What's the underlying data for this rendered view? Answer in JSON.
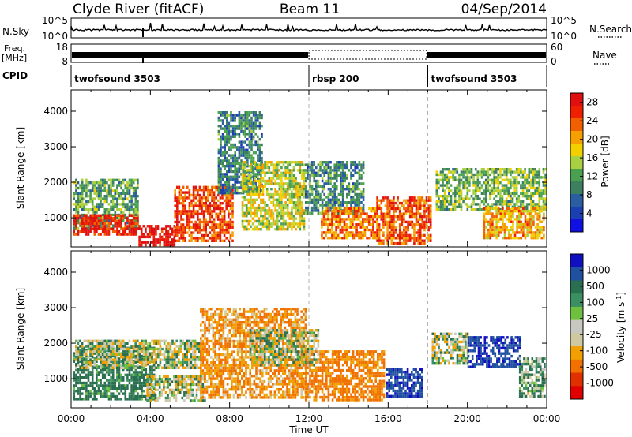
{
  "header": {
    "station": "Clyde River (fitACF)",
    "beam": "Beam 11",
    "date": "04/Sep/2014"
  },
  "noise_panel": {
    "left_label": "N.Sky",
    "left_ticks": [
      "10^5",
      "10^0"
    ],
    "right_label": "N.Search",
    "right_ticks": [
      "10^5",
      "10^0"
    ]
  },
  "freq_panel": {
    "left_label_1": "Freq.",
    "left_label_2": "[MHz]",
    "left_ticks": [
      "18",
      "8"
    ],
    "right_label": "Nave",
    "right_ticks": [
      "60",
      "0"
    ]
  },
  "cpid": {
    "label": "CPID",
    "segments": [
      {
        "name": "twofsound 3503",
        "start_hour": 0,
        "end_hour": 12
      },
      {
        "name": "rbsp 200",
        "start_hour": 12,
        "end_hour": 18
      },
      {
        "name": "twofsound 3503",
        "start_hour": 18,
        "end_hour": 24
      }
    ]
  },
  "colors": {
    "power_scale": [
      "#1010e0",
      "#1a3fb0",
      "#2a5ea0",
      "#3c8060",
      "#4aa050",
      "#a8d040",
      "#f2d000",
      "#f5a000",
      "#f06000",
      "#ee2000",
      "#e01010"
    ],
    "velocity_scale": [
      "#1010c0",
      "#2050a0",
      "#2a7050",
      "#3a9060",
      "#70c040",
      "#c8c8c0",
      "#d0c8a0",
      "#f0a000",
      "#f07000",
      "#e03000",
      "#e00000"
    ],
    "grid_dash": "#b0b0b0"
  },
  "chart_data": [
    {
      "type": "heatmap",
      "title": "Beam 11",
      "xlabel": "Time UT",
      "ylabel": "Slant Range [km]",
      "x_ticks": [
        "00:00",
        "04:00",
        "08:00",
        "12:00",
        "16:00",
        "20:00",
        "00:00"
      ],
      "xlim_hours": [
        0,
        24
      ],
      "y_ticks": [
        1000,
        2000,
        3000,
        4000
      ],
      "ylim": [
        180,
        4600
      ],
      "colorbar": {
        "label": "Power [dB]",
        "ticks": [
          4,
          8,
          12,
          16,
          20,
          24,
          28
        ],
        "range": [
          0,
          30
        ]
      },
      "echo_regions": [
        {
          "t0": 0.1,
          "t1": 3.4,
          "r0": 700,
          "r1": 2100,
          "value": 12
        },
        {
          "t0": 0.1,
          "t1": 3.4,
          "r0": 500,
          "r1": 1100,
          "value": 27
        },
        {
          "t0": 3.4,
          "t1": 5.2,
          "r0": 250,
          "r1": 800,
          "value": 29
        },
        {
          "t0": 5.2,
          "t1": 8.2,
          "r0": 350,
          "r1": 1900,
          "value": 25
        },
        {
          "t0": 7.4,
          "t1": 9.6,
          "r0": 1700,
          "r1": 4000,
          "value": 9
        },
        {
          "t0": 8.6,
          "t1": 11.8,
          "r0": 700,
          "r1": 2600,
          "value": 16
        },
        {
          "t0": 11.8,
          "t1": 14.8,
          "r0": 1100,
          "r1": 2600,
          "value": 10
        },
        {
          "t0": 12.6,
          "t1": 15.4,
          "r0": 400,
          "r1": 1300,
          "value": 22
        },
        {
          "t0": 15.4,
          "t1": 18.1,
          "r0": 300,
          "r1": 1600,
          "value": 24
        },
        {
          "t0": 18.4,
          "t1": 23.9,
          "r0": 1200,
          "r1": 2400,
          "value": 13
        },
        {
          "t0": 20.8,
          "t1": 23.9,
          "r0": 400,
          "r1": 1300,
          "value": 20
        }
      ]
    },
    {
      "type": "heatmap",
      "xlabel": "Time UT",
      "ylabel": "Slant Range [km]",
      "x_ticks": [
        "00:00",
        "04:00",
        "08:00",
        "12:00",
        "16:00",
        "20:00",
        "00:00"
      ],
      "xlim_hours": [
        0,
        24
      ],
      "y_ticks": [
        1000,
        2000,
        3000,
        4000
      ],
      "ylim": [
        180,
        4600
      ],
      "colorbar": {
        "label": "Velocity [m s^-1]",
        "ticks": [
          "1000",
          "500",
          "100",
          "25",
          "-25",
          "-100",
          "-500",
          "-1000"
        ],
        "range": [
          -1000,
          1000
        ]
      },
      "echo_regions": [
        {
          "t0": 0.1,
          "t1": 4.2,
          "r0": 450,
          "r1": 1900,
          "value": 150
        },
        {
          "t0": 0.2,
          "t1": 6.5,
          "r0": 1300,
          "r1": 2100,
          "value": 0
        },
        {
          "t0": 3.8,
          "t1": 6.8,
          "r0": 350,
          "r1": 1100,
          "value": 0
        },
        {
          "t0": 6.5,
          "t1": 11.8,
          "r0": 500,
          "r1": 3000,
          "value": -150
        },
        {
          "t0": 11.8,
          "t1": 15.8,
          "r0": 400,
          "r1": 1800,
          "value": -200
        },
        {
          "t0": 9.0,
          "t1": 12.5,
          "r0": 1400,
          "r1": 2400,
          "value": 0
        },
        {
          "t0": 15.9,
          "t1": 17.7,
          "r0": 500,
          "r1": 1300,
          "value": 700
        },
        {
          "t0": 18.2,
          "t1": 20.0,
          "r0": 1400,
          "r1": 2300,
          "value": 0
        },
        {
          "t0": 20.0,
          "t1": 22.6,
          "r0": 1300,
          "r1": 2200,
          "value": 700
        },
        {
          "t0": 22.6,
          "t1": 23.9,
          "r0": 500,
          "r1": 1600,
          "value": 60
        }
      ]
    }
  ]
}
